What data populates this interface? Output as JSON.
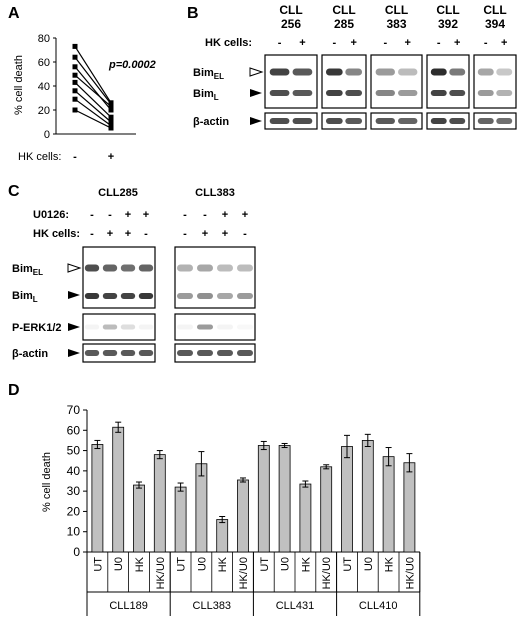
{
  "panel_a": {
    "label": "A",
    "ylabel": "% cell death",
    "yticks": [
      "0",
      "20",
      "40",
      "60",
      "80"
    ],
    "ylim": [
      0,
      80
    ],
    "xlabel": "HK cells:",
    "x_minus": "-",
    "x_plus": "+",
    "pvalue": "p=0.0002",
    "pairs": [
      [
        73,
        26
      ],
      [
        64,
        25
      ],
      [
        56,
        20
      ],
      [
        49,
        23
      ],
      [
        43,
        14
      ],
      [
        36,
        10
      ],
      [
        29,
        7
      ],
      [
        20,
        5
      ]
    ]
  },
  "panel_b": {
    "label": "B",
    "samples": [
      {
        "l1": "CLL",
        "l2": "256"
      },
      {
        "l1": "CLL",
        "l2": "285"
      },
      {
        "l1": "CLL",
        "l2": "383"
      },
      {
        "l1": "CLL",
        "l2": "392"
      },
      {
        "l1": "CLL",
        "l2": "394"
      }
    ],
    "hk_label": "HK cells:",
    "minus": "-",
    "plus": "+",
    "bim_el": "Bim",
    "bim_el_sub": "EL",
    "bim_l": "Bim",
    "bim_l_sub": "L",
    "actin": "β-actin"
  },
  "panel_c": {
    "label": "C",
    "sample1": "CLL285",
    "sample2": "CLL383",
    "u0126_label": "U0126:",
    "hk_label": "HK cells:",
    "u0126_signs": [
      "-",
      "-",
      "+",
      "+"
    ],
    "hk_signs": [
      "-",
      "+",
      "+",
      "-"
    ],
    "bim_el": "Bim",
    "bim_el_sub": "EL",
    "bim_l": "Bim",
    "bim_l_sub": "L",
    "perk": "P-ERK1/2",
    "actin": "β-actin"
  },
  "chart_data": {
    "type": "bar",
    "panel_label": "D",
    "ylabel": "% cell death",
    "ylim": [
      0,
      70
    ],
    "yticks": [
      "0",
      "10",
      "20",
      "30",
      "40",
      "50",
      "60",
      "70"
    ],
    "groups": [
      {
        "name": "CLL189",
        "categories": [
          "UT",
          "U0",
          "HK",
          "HK/U0"
        ],
        "values": [
          53,
          61.5,
          33,
          48
        ],
        "errors": [
          2,
          2.5,
          1.5,
          2
        ]
      },
      {
        "name": "CLL383",
        "categories": [
          "UT",
          "U0",
          "HK",
          "HK/U0"
        ],
        "values": [
          32,
          43.5,
          16,
          35.5
        ],
        "errors": [
          2,
          6,
          1.5,
          1
        ]
      },
      {
        "name": "CLL431",
        "categories": [
          "UT",
          "U0",
          "HK",
          "HK/U0"
        ],
        "values": [
          52.5,
          52.5,
          33.5,
          42
        ],
        "errors": [
          2,
          1,
          1.5,
          1
        ]
      },
      {
        "name": "CLL410",
        "categories": [
          "UT",
          "U0",
          "HK",
          "HK/U0"
        ],
        "values": [
          52,
          55,
          47,
          44
        ],
        "errors": [
          5.5,
          3,
          4.5,
          4.5
        ]
      }
    ],
    "bar_color": "#c0c0c0"
  }
}
